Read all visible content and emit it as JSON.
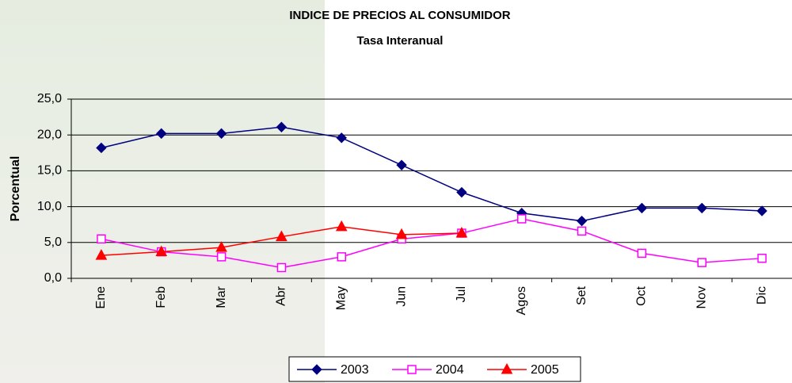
{
  "chart_data": {
    "type": "line",
    "title": "INDICE DE PRECIOS AL CONSUMIDOR",
    "subtitle": "Tasa Interanual",
    "y_label": "Porcentual",
    "categories": [
      "Ene",
      "Feb",
      "Mar",
      "Abr",
      "May",
      "Jun",
      "Jul",
      "Agos",
      "Set",
      "Oct",
      "Nov",
      "Dic"
    ],
    "series": [
      {
        "name": "2003",
        "color": "#000080",
        "marker": "diamond",
        "values": [
          18.2,
          20.2,
          20.2,
          21.1,
          19.6,
          15.8,
          12.0,
          9.1,
          8.0,
          9.8,
          9.8,
          9.4
        ]
      },
      {
        "name": "2004",
        "color": "#ff00ff",
        "marker": "square",
        "values": [
          5.5,
          3.7,
          3.0,
          1.5,
          3.0,
          5.5,
          6.3,
          8.3,
          6.6,
          3.5,
          2.2,
          2.8
        ]
      },
      {
        "name": "2005",
        "color": "#ff0000",
        "marker": "triangle",
        "values": [
          3.2,
          3.7,
          4.3,
          5.8,
          7.2,
          6.1,
          6.3,
          null,
          null,
          null,
          null,
          null
        ]
      }
    ],
    "ylim": [
      0,
      25
    ],
    "yticks": [
      {
        "value": 0,
        "label": "0,0"
      },
      {
        "value": 5,
        "label": "5,0"
      },
      {
        "value": 10,
        "label": "10,0"
      },
      {
        "value": 15,
        "label": "15,0"
      },
      {
        "value": 20,
        "label": "20,0"
      },
      {
        "value": 25,
        "label": "25,0"
      }
    ],
    "grid": true,
    "legend": "bottom"
  }
}
